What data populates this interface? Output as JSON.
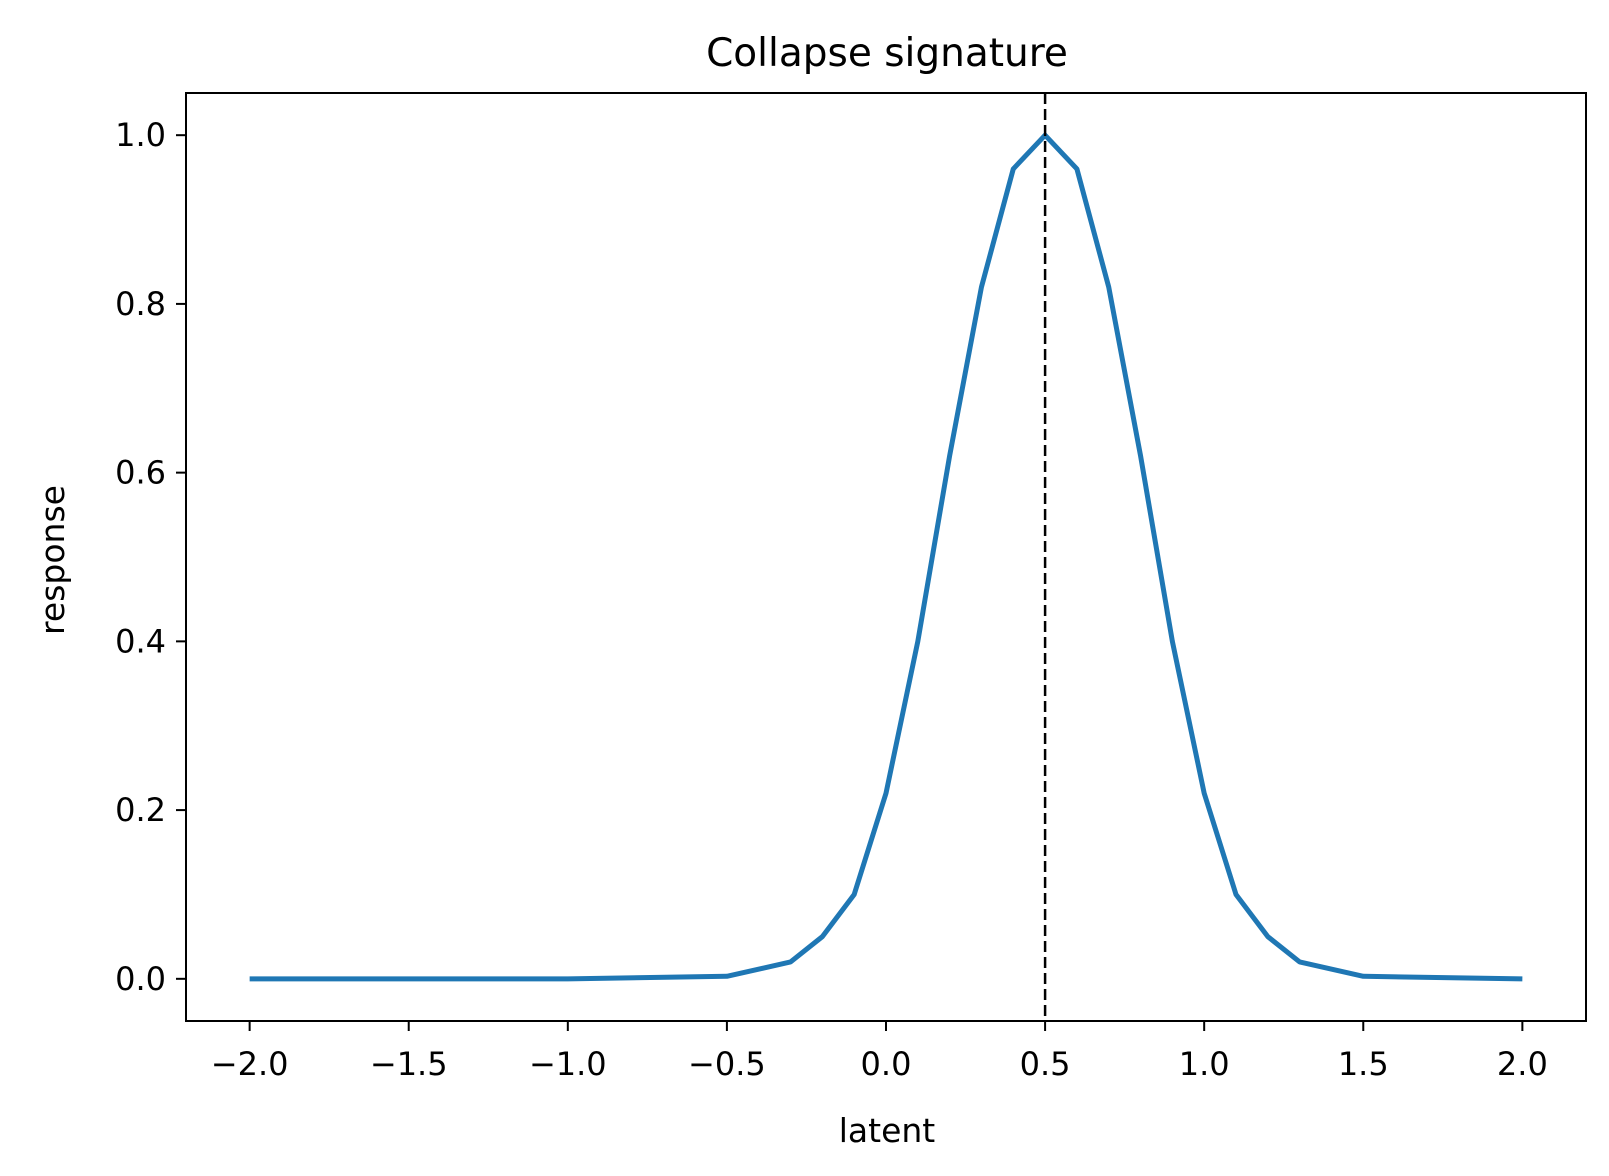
{
  "chart_data": {
    "type": "line",
    "title": "Collapse signature",
    "xlabel": "latent",
    "ylabel": "response",
    "xlim": [
      -2.2,
      2.2
    ],
    "ylim": [
      -0.05,
      1.05
    ],
    "xticks": [
      -2.0,
      -1.5,
      -1.0,
      -0.5,
      0.0,
      0.5,
      1.0,
      1.5,
      2.0
    ],
    "xtick_labels": [
      "−2.0",
      "−1.5",
      "−1.0",
      "−0.5",
      "0.0",
      "0.5",
      "1.0",
      "1.5",
      "2.0"
    ],
    "yticks": [
      0.0,
      0.2,
      0.4,
      0.6,
      0.8,
      1.0
    ],
    "ytick_labels": [
      "0.0",
      "0.2",
      "0.4",
      "0.6",
      "0.8",
      "1.0"
    ],
    "grid": false,
    "legend": "none",
    "series": [
      {
        "color": "#1f77b4",
        "x": [
          -2.0,
          -1.0,
          -0.5,
          -0.3,
          -0.2,
          -0.1,
          0.0,
          0.1,
          0.2,
          0.3,
          0.4,
          0.5,
          0.6,
          0.7,
          0.8,
          0.9,
          1.0,
          1.1,
          1.2,
          1.3,
          1.5,
          2.0
        ],
        "y": [
          0.0,
          0.0,
          0.003,
          0.02,
          0.05,
          0.1,
          0.22,
          0.4,
          0.62,
          0.82,
          0.96,
          1.0,
          0.96,
          0.82,
          0.62,
          0.4,
          0.22,
          0.1,
          0.05,
          0.02,
          0.003,
          0.0
        ]
      }
    ],
    "vline": {
      "x": 0.5,
      "color": "#000000",
      "style": "dashed"
    }
  }
}
